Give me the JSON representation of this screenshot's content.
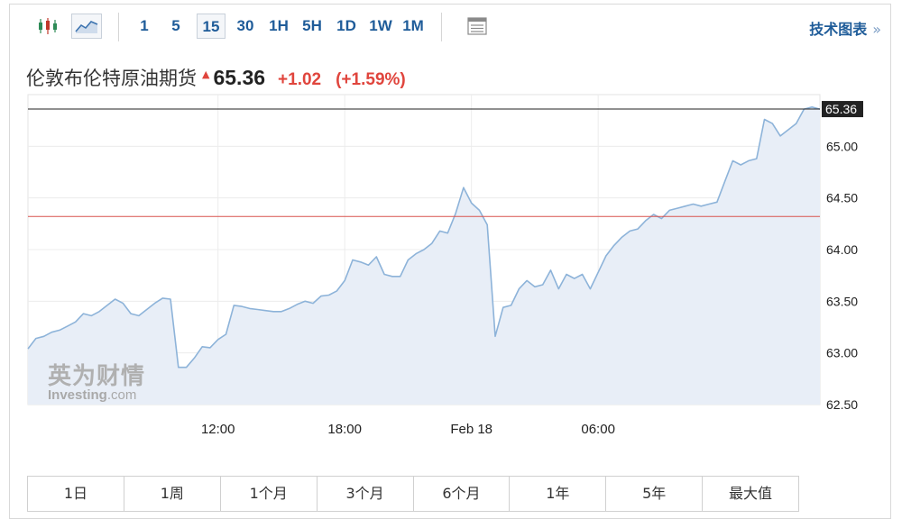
{
  "toolbar": {
    "intervals": [
      "1",
      "5",
      "15",
      "30",
      "1H",
      "5H",
      "1D",
      "1W",
      "1M"
    ],
    "selected_interval": "15",
    "technical_link": "技术图表",
    "technical_link_arrows": "»"
  },
  "header": {
    "instrument": "伦敦布伦特原油期货",
    "last_price": "65.36",
    "change": "+1.02",
    "change_pct": "(+1.59%)",
    "direction_marker": "up-arrow"
  },
  "watermark": {
    "cn": "英为财情",
    "en_brand": "Investing",
    "en_suffix": ".com"
  },
  "colors": {
    "line": "#8db3d9",
    "area_fill": "#e8eef7",
    "up": "#e0453d",
    "link": "#1f5c99",
    "prev_close_line": "#d9534f",
    "last_price_line": "#222222",
    "price_tag_bg": "#222222"
  },
  "chart_data": {
    "type": "area",
    "ylim": [
      62.5,
      65.5
    ],
    "yticks": [
      "63.00",
      "63.50",
      "64.00",
      "64.50",
      "65.00"
    ],
    "ytick_values": [
      63.0,
      63.5,
      64.0,
      64.5,
      65.0
    ],
    "bottom_tick": "62.50",
    "x_tick_labels": [
      "12:00",
      "18:00",
      "Feb 18",
      "06:00"
    ],
    "x_tick_index": [
      24,
      40,
      56,
      72
    ],
    "last_value": 65.36,
    "last_value_label": "65.36",
    "reference_line_value": 64.32,
    "grid": true,
    "values": [
      63.04,
      63.14,
      63.16,
      63.2,
      63.22,
      63.26,
      63.3,
      63.38,
      63.36,
      63.4,
      63.46,
      63.52,
      63.48,
      63.38,
      63.36,
      63.42,
      63.48,
      63.53,
      63.52,
      62.86,
      62.86,
      62.95,
      63.06,
      63.05,
      63.13,
      63.18,
      63.46,
      63.45,
      63.43,
      63.42,
      63.41,
      63.4,
      63.4,
      63.43,
      63.47,
      63.5,
      63.48,
      63.55,
      63.56,
      63.6,
      63.7,
      63.9,
      63.88,
      63.85,
      63.93,
      63.76,
      63.74,
      63.74,
      63.9,
      63.96,
      64.0,
      64.06,
      64.18,
      64.16,
      64.35,
      64.6,
      64.45,
      64.38,
      64.24,
      63.16,
      63.44,
      63.46,
      63.62,
      63.7,
      63.64,
      63.66,
      63.8,
      63.62,
      63.76,
      63.72,
      63.76,
      63.62,
      63.78,
      63.94,
      64.04,
      64.12,
      64.18,
      64.2,
      64.28,
      64.34,
      64.3,
      64.38,
      64.4,
      64.42,
      64.44,
      64.42,
      64.44,
      64.46,
      64.66,
      64.86,
      64.82,
      64.86,
      64.88,
      65.26,
      65.22,
      65.1,
      65.16,
      65.22,
      65.36,
      65.38,
      65.36
    ]
  },
  "range_buttons": [
    "1日",
    "1周",
    "1个月",
    "3个月",
    "6个月",
    "1年",
    "5年",
    "最大值"
  ]
}
